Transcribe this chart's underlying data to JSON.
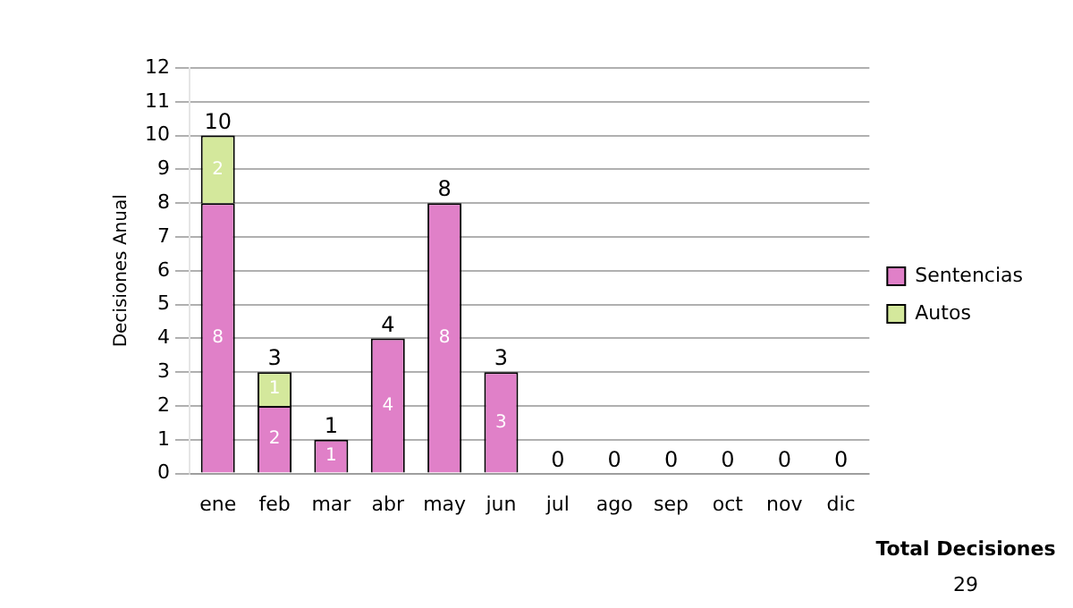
{
  "chart_data": {
    "type": "bar",
    "stacked": true,
    "ylabel": "Decisiones Anual",
    "categories": [
      "ene",
      "feb",
      "mar",
      "abr",
      "may",
      "jun",
      "jul",
      "ago",
      "sep",
      "oct",
      "nov",
      "dic"
    ],
    "series": [
      {
        "name": "Sentencias",
        "color": "#e080c8",
        "values": [
          8,
          2,
          1,
          4,
          8,
          3,
          0,
          0,
          0,
          0,
          0,
          0
        ],
        "value_labels": [
          "8",
          "2",
          "1",
          "4",
          "8",
          "3",
          null,
          null,
          null,
          null,
          null,
          null
        ]
      },
      {
        "name": "Autos",
        "color": "#d4e89c",
        "values": [
          2,
          1,
          0,
          0,
          0,
          0,
          0,
          0,
          0,
          0,
          0,
          0
        ],
        "value_labels": [
          "2",
          "1",
          null,
          null,
          null,
          null,
          null,
          null,
          null,
          null,
          null,
          null
        ]
      }
    ],
    "totals": [
      "10",
      "3",
      "1",
      "4",
      "8",
      "3",
      "0",
      "0",
      "0",
      "0",
      "0",
      "0"
    ],
    "ylim": [
      0,
      12
    ],
    "yticks": [
      0,
      1,
      2,
      3,
      4,
      5,
      6,
      7,
      8,
      9,
      10,
      11,
      12
    ],
    "grid": "y",
    "legend": "right",
    "annotations": [
      "Total Decisiones",
      "29"
    ]
  }
}
